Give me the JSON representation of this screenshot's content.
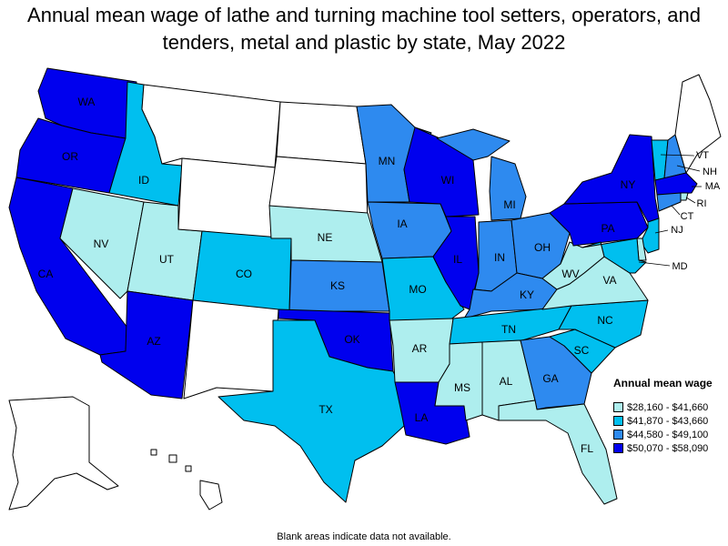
{
  "title": "Annual mean wage of lathe and turning machine tool setters, operators, and tenders, metal and plastic by state, May 2022",
  "footnote": "Blank areas indicate data not available.",
  "legend": {
    "title": "Annual mean wage",
    "bins": [
      {
        "label": "$28,160 - $41,660",
        "color": "#aeeeee"
      },
      {
        "label": "$41,870 - $43,660",
        "color": "#00bfef"
      },
      {
        "label": "$44,580 - $49,100",
        "color": "#2e8aef"
      },
      {
        "label": "$50,070 - $58,090",
        "color": "#0000ee"
      }
    ],
    "no_data_color": "#ffffff"
  },
  "states": {
    "WA": {
      "label": "WA",
      "bin": 3
    },
    "OR": {
      "label": "OR",
      "bin": 3
    },
    "CA": {
      "label": "CA",
      "bin": 3
    },
    "ID": {
      "label": "ID",
      "bin": 1
    },
    "NV": {
      "label": "NV",
      "bin": 0
    },
    "UT": {
      "label": "UT",
      "bin": 0
    },
    "AZ": {
      "label": "AZ",
      "bin": 3
    },
    "MT": {
      "label": "",
      "bin": null
    },
    "WY": {
      "label": "",
      "bin": null
    },
    "CO": {
      "label": "CO",
      "bin": 1
    },
    "NM": {
      "label": "",
      "bin": null
    },
    "ND": {
      "label": "",
      "bin": null
    },
    "SD": {
      "label": "",
      "bin": null
    },
    "NE": {
      "label": "NE",
      "bin": 0
    },
    "KS": {
      "label": "KS",
      "bin": 2
    },
    "OK": {
      "label": "OK",
      "bin": 3
    },
    "TX": {
      "label": "TX",
      "bin": 1
    },
    "MN": {
      "label": "MN",
      "bin": 2
    },
    "IA": {
      "label": "IA",
      "bin": 2
    },
    "MO": {
      "label": "MO",
      "bin": 1
    },
    "AR": {
      "label": "AR",
      "bin": 0
    },
    "LA": {
      "label": "LA",
      "bin": 3
    },
    "WI": {
      "label": "WI",
      "bin": 3
    },
    "IL": {
      "label": "IL",
      "bin": 3
    },
    "MI": {
      "label": "MI",
      "bin": 2
    },
    "IN": {
      "label": "IN",
      "bin": 2
    },
    "OH": {
      "label": "OH",
      "bin": 2
    },
    "KY": {
      "label": "KY",
      "bin": 2
    },
    "TN": {
      "label": "TN",
      "bin": 1
    },
    "MS": {
      "label": "MS",
      "bin": 0
    },
    "AL": {
      "label": "AL",
      "bin": 0
    },
    "GA": {
      "label": "GA",
      "bin": 2
    },
    "FL": {
      "label": "FL",
      "bin": 0
    },
    "SC": {
      "label": "SC",
      "bin": 1
    },
    "NC": {
      "label": "NC",
      "bin": 1
    },
    "VA": {
      "label": "VA",
      "bin": 0
    },
    "WV": {
      "label": "WV",
      "bin": 0
    },
    "PA": {
      "label": "PA",
      "bin": 3
    },
    "NY": {
      "label": "NY",
      "bin": 3
    },
    "VT": {
      "label": "VT",
      "bin": 1
    },
    "NH": {
      "label": "NH",
      "bin": 2
    },
    "ME": {
      "label": "",
      "bin": null
    },
    "MA": {
      "label": "MA",
      "bin": 3
    },
    "RI": {
      "label": "RI",
      "bin": 0
    },
    "CT": {
      "label": "CT",
      "bin": 2
    },
    "NJ": {
      "label": "NJ",
      "bin": 1
    },
    "DE": {
      "label": "",
      "bin": 0
    },
    "MD": {
      "label": "MD",
      "bin": 1
    },
    "AK": {
      "label": "",
      "bin": null
    },
    "HI": {
      "label": "",
      "bin": null
    }
  }
}
